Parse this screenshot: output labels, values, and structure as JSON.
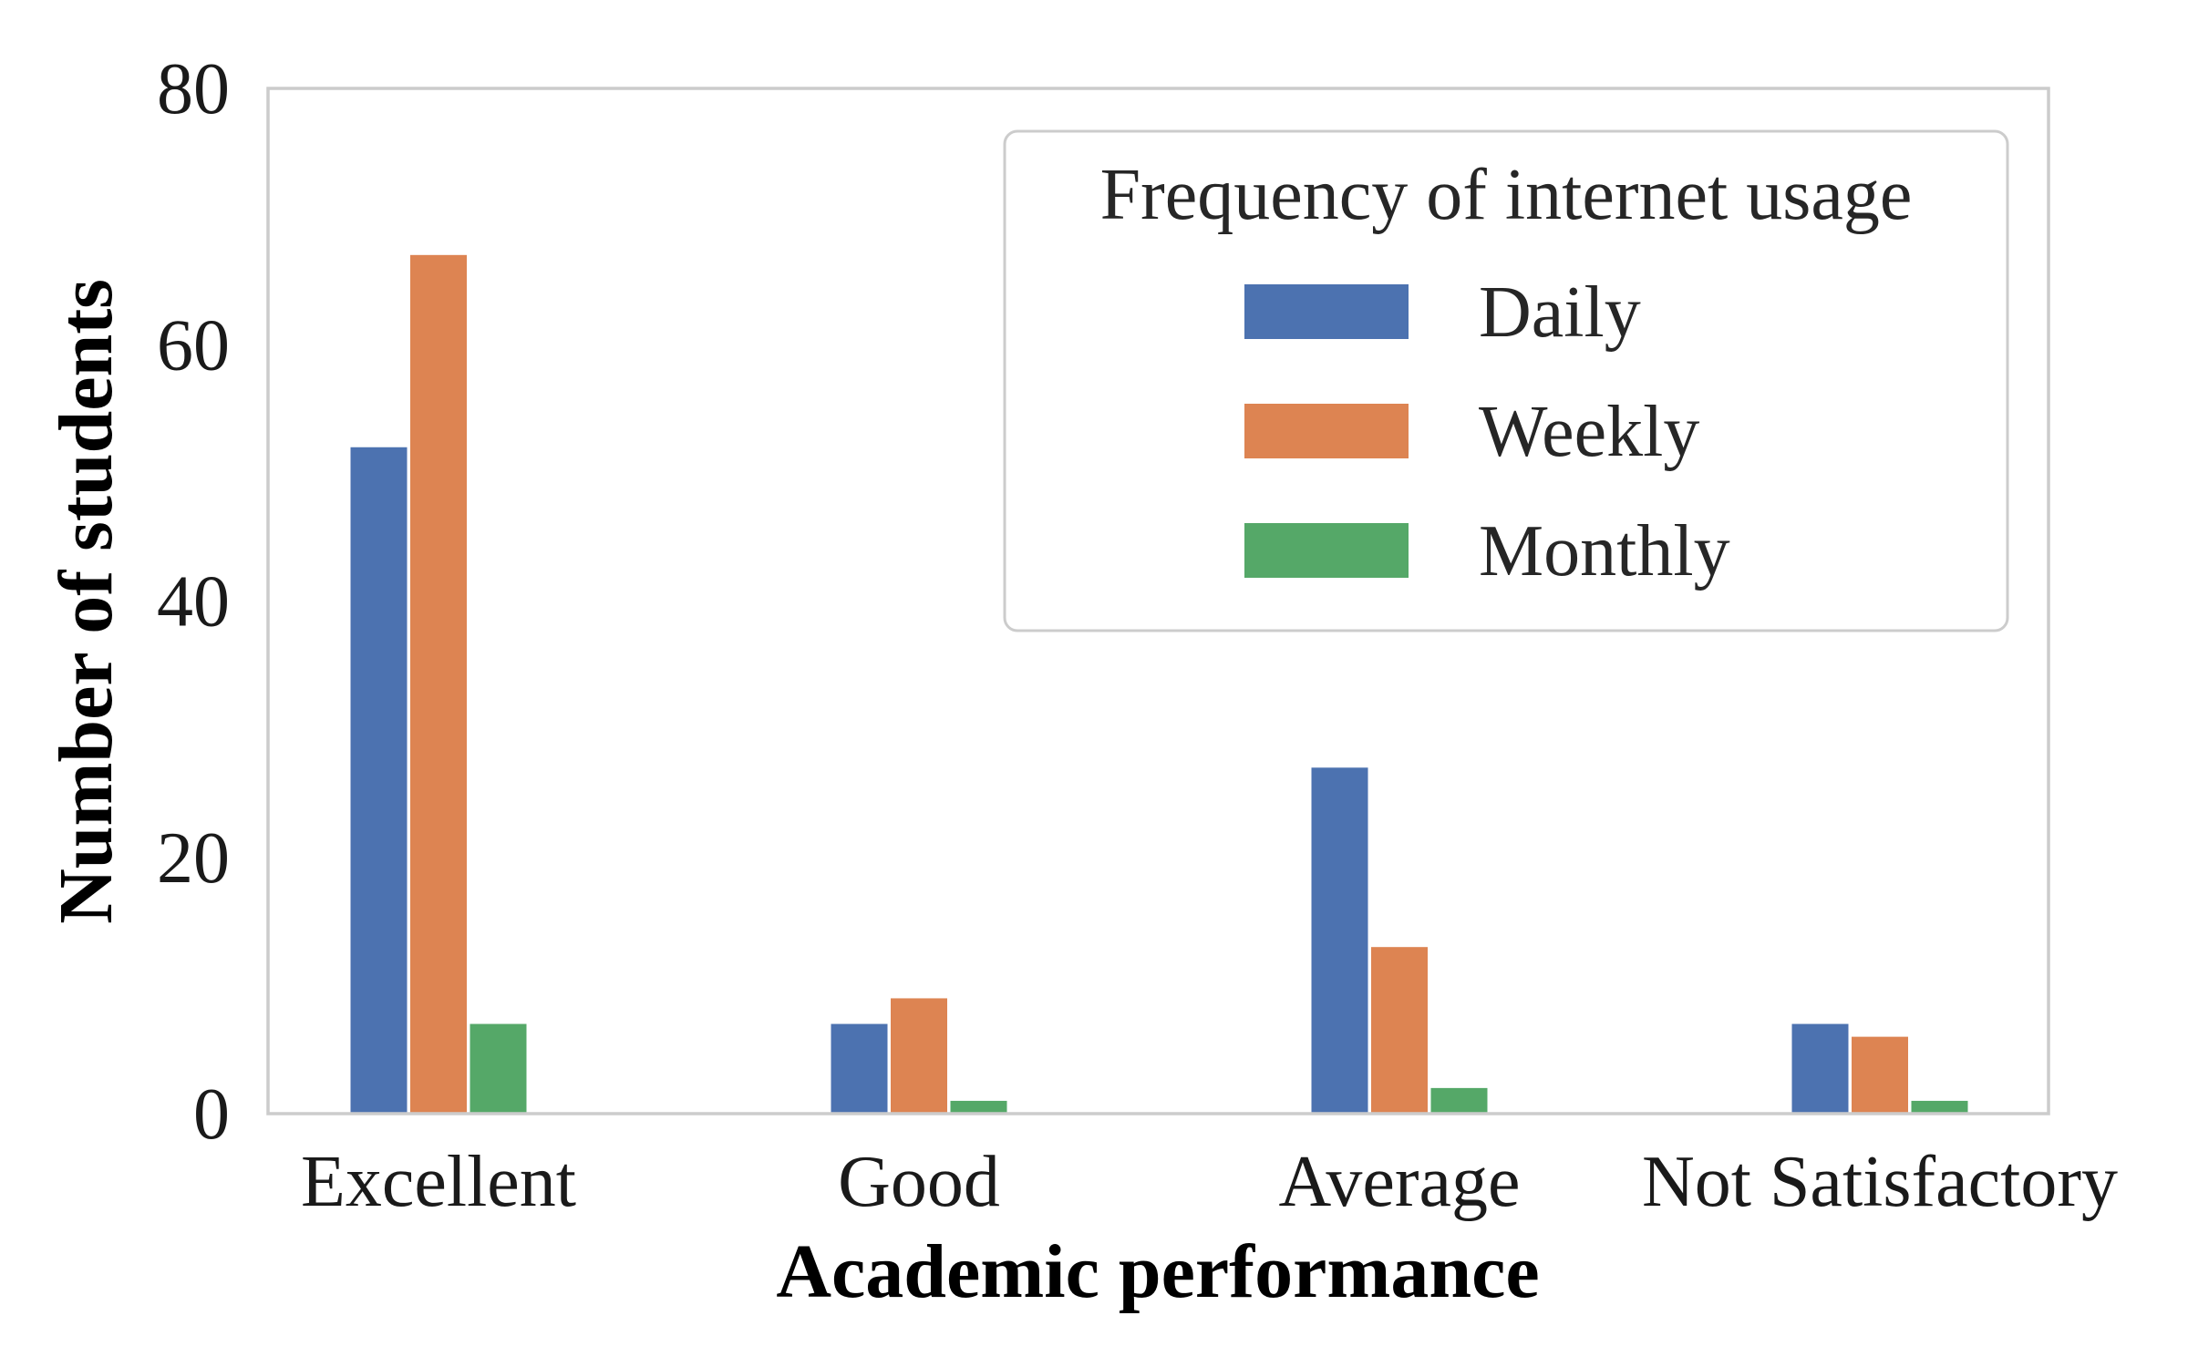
{
  "chart_data": {
    "type": "bar",
    "xlabel": "Academic performance",
    "ylabel": "Number of students",
    "categories": [
      "Excellent",
      "Good",
      "Average",
      "Not Satisfactory"
    ],
    "series": [
      {
        "name": "Daily",
        "color": "#4c72b0",
        "values": [
          52,
          7,
          27,
          7
        ]
      },
      {
        "name": "Weekly",
        "color": "#dd8452",
        "values": [
          67,
          9,
          13,
          6
        ]
      },
      {
        "name": "Monthly",
        "color": "#55a868",
        "values": [
          7,
          1,
          2,
          1
        ]
      }
    ],
    "ylim": [
      0,
      80
    ],
    "yticks": [
      "0",
      "20",
      "40",
      "60",
      "80"
    ],
    "grid": false,
    "legend": {
      "title": "Frequency of internet usage",
      "placement": "top-right"
    }
  }
}
